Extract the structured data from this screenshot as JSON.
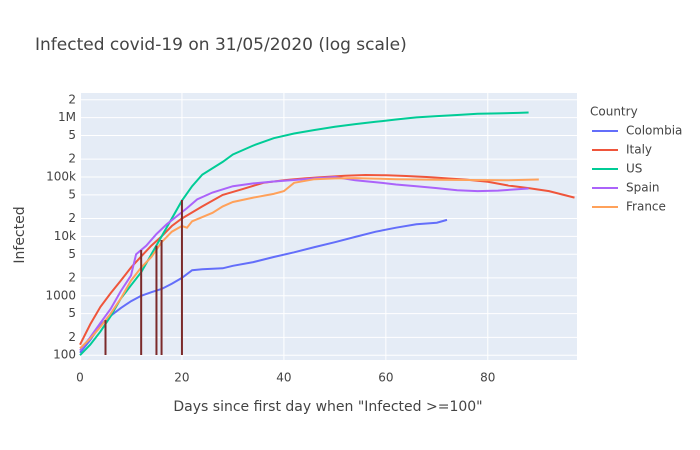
{
  "chart_data": {
    "type": "line",
    "title": "Infected covid-19 on 31/05/2020  (log scale)",
    "x_label": "Days since first day when \"Infected >=100\"",
    "y_label": "Infected",
    "legend_title": "Country",
    "log_y": true,
    "grid": true,
    "legend_position": "right",
    "background": "#e5ecf6",
    "xlim": [
      0,
      97.5
    ],
    "xticks": [
      0,
      20,
      40,
      60,
      80
    ],
    "ylim": [
      83,
      2600000
    ],
    "yticks": [
      100,
      {
        "value": 200,
        "label": "2"
      },
      {
        "value": 500,
        "label": "5"
      },
      1000,
      {
        "value": 2000,
        "label": "2"
      },
      {
        "value": 5000,
        "label": "5"
      },
      {
        "value": 10000,
        "label": "10k"
      },
      {
        "value": 20000,
        "label": "2"
      },
      {
        "value": 50000,
        "label": "5"
      },
      {
        "value": 100000,
        "label": "100k"
      },
      {
        "value": 200000,
        "label": "2"
      },
      {
        "value": 500000,
        "label": "5"
      },
      {
        "value": 1000000,
        "label": "1M"
      },
      {
        "value": 2000000,
        "label": "2"
      }
    ],
    "series": [
      {
        "name": "Colombia",
        "color": "#636efa",
        "x": [
          0,
          2,
          4,
          6,
          8,
          10,
          12,
          14,
          16,
          18,
          20,
          22,
          24,
          28,
          30,
          34,
          38,
          42,
          46,
          50,
          54,
          58,
          62,
          66,
          70,
          72
        ],
        "values": [
          110,
          180,
          320,
          460,
          620,
          810,
          1000,
          1150,
          1300,
          1600,
          2000,
          2700,
          2800,
          2900,
          3200,
          3700,
          4500,
          5400,
          6600,
          8000,
          9800,
          12000,
          14000,
          16000,
          17000,
          19000
        ]
      },
      {
        "name": "Italy",
        "color": "#EF553B",
        "x": [
          0,
          2,
          4,
          6,
          8,
          10,
          12,
          14,
          16,
          18,
          20,
          24,
          28,
          32,
          36,
          40,
          44,
          48,
          52,
          56,
          60,
          64,
          68,
          72,
          76,
          80,
          84,
          88,
          92,
          97
        ],
        "values": [
          150,
          330,
          650,
          1100,
          1800,
          3000,
          4600,
          7000,
          10000,
          15000,
          20000,
          32000,
          50000,
          63000,
          80000,
          88000,
          95000,
          100000,
          105000,
          108000,
          107000,
          104000,
          100000,
          95000,
          90000,
          83000,
          72000,
          65000,
          58000,
          45000
        ]
      },
      {
        "name": "US",
        "color": "#00cc96",
        "x": [
          0,
          2,
          4,
          6,
          8,
          10,
          12,
          14,
          16,
          18,
          20,
          22,
          24,
          28,
          30,
          34,
          38,
          42,
          46,
          50,
          54,
          58,
          62,
          66,
          70,
          74,
          78,
          82,
          86,
          88
        ],
        "values": [
          100,
          150,
          250,
          450,
          900,
          1500,
          2500,
          5000,
          10000,
          20000,
          40000,
          70000,
          110000,
          180000,
          240000,
          340000,
          450000,
          540000,
          620000,
          700000,
          780000,
          850000,
          930000,
          1010000,
          1060000,
          1110000,
          1160000,
          1180000,
          1200000,
          1220000
        ]
      },
      {
        "name": "Spain",
        "color": "#ab63fa",
        "x": [
          0,
          2,
          4,
          6,
          8,
          10,
          11,
          13,
          15,
          17,
          19,
          21,
          23,
          26,
          30,
          34,
          38,
          42,
          46,
          50,
          54,
          58,
          62,
          66,
          70,
          74,
          78,
          82,
          88
        ],
        "values": [
          120,
          200,
          350,
          600,
          1200,
          2200,
          5000,
          7000,
          11000,
          16000,
          22000,
          30000,
          42000,
          55000,
          70000,
          78000,
          84000,
          89000,
          95000,
          100000,
          88000,
          82000,
          75000,
          70000,
          65000,
          60000,
          58000,
          59000,
          64000
        ]
      },
      {
        "name": "France",
        "color": "#FFA15A",
        "x": [
          0,
          2,
          4,
          6,
          8,
          10,
          12,
          14,
          16,
          18,
          20,
          21,
          22,
          26,
          28,
          30,
          34,
          38,
          40,
          42,
          46,
          50,
          54,
          58,
          62,
          66,
          70,
          76,
          84,
          88,
          90
        ],
        "values": [
          130,
          190,
          300,
          500,
          900,
          1800,
          3000,
          4500,
          8000,
          12000,
          15000,
          14000,
          18000,
          25000,
          32000,
          38000,
          45000,
          52000,
          58000,
          80000,
          92000,
          95000,
          96000,
          94000,
          92000,
          91000,
          90000,
          89000,
          88000,
          90000,
          91000
        ]
      }
    ],
    "vbars": {
      "color": "#7b2a2a",
      "x": [
        5,
        12,
        15,
        16,
        20
      ],
      "values": [
        390,
        5900,
        7000,
        8700,
        41000
      ]
    }
  }
}
